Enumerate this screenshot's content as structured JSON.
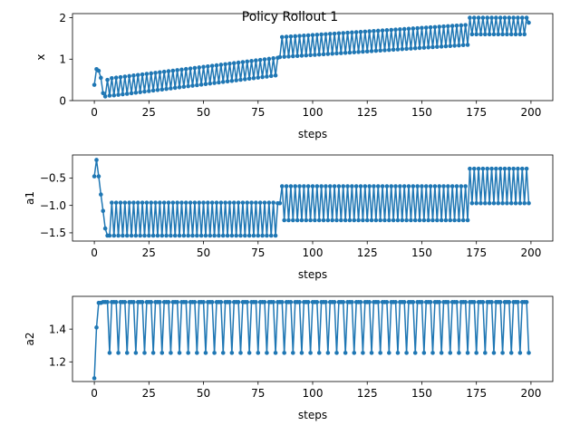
{
  "figure": {
    "title": "Policy Rollout 1"
  },
  "colors": {
    "series": "#1f77b4"
  },
  "chart_data": [
    {
      "type": "line",
      "xlabel": "steps",
      "ylabel": "x",
      "xlim": [
        -10,
        210
      ],
      "ylim": [
        0,
        2.1
      ],
      "xticks": [
        "0",
        "25",
        "50",
        "75",
        "100",
        "125",
        "150",
        "175",
        "200"
      ],
      "yticks": [
        "0",
        "1",
        "2"
      ],
      "marker": "circle",
      "grid": false
    },
    {
      "type": "line",
      "xlabel": "steps",
      "ylabel": "a1",
      "xlim": [
        -10,
        210
      ],
      "ylim": [
        -1.65,
        -0.08
      ],
      "xticks": [
        "0",
        "25",
        "50",
        "75",
        "100",
        "125",
        "150",
        "175",
        "200"
      ],
      "yticks": [
        "−1.5",
        "−1.0",
        "−0.5"
      ],
      "marker": "circle",
      "grid": false
    },
    {
      "type": "line",
      "xlabel": "steps",
      "ylabel": "a2",
      "xlim": [
        -10,
        210
      ],
      "ylim": [
        1.08,
        1.6
      ],
      "xticks": [
        "0",
        "25",
        "50",
        "75",
        "100",
        "125",
        "150",
        "175",
        "200"
      ],
      "yticks": [
        "1.2",
        "1.4"
      ],
      "marker": "circle",
      "grid": false
    }
  ]
}
